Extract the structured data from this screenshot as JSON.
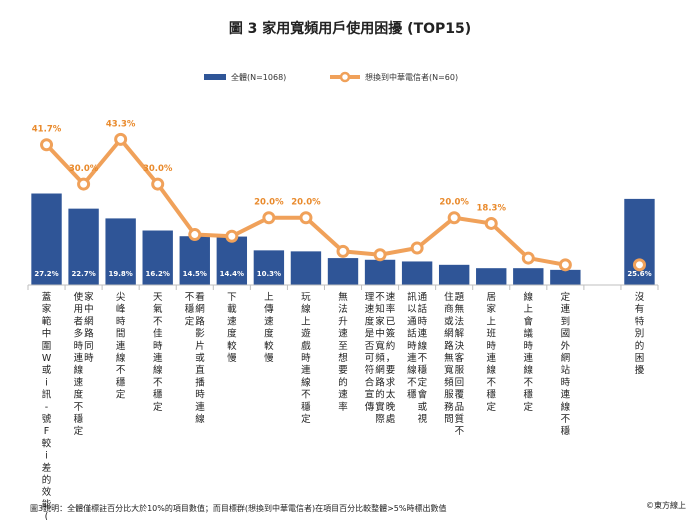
{
  "chart_data": {
    "type": "bar",
    "title": "圖 3 家用寬頻用戶使用困擾 (TOP15)",
    "categories": [
      "蓋範圍或訊號較差家中Wi-Fi的效能(涵",
      "使用者多時連線速度不穩定家中網路同時",
      "尖峰時間連線不穩定",
      "天氣不佳時連線不穩定",
      "不穩定看網路影片或直播時連線",
      "下載速度較慢",
      "上傳速度較慢",
      "玩線上遊戲時連線不穩定",
      "無法升速至想要的速率",
      "理速度是否可符合宣傳不知家中寬頻網路的實際速率已簽約，要求太晚處理已經無法",
      "訊以通話時連線不穩定（影像或視訊通話時連線不穩定）",
      "住商或網路無寬頻服務問題無法解決客服回覆品質不佳",
      "居家上班時連線不穩定",
      "線上會議時連線不穩定",
      "定連到國外網站時連線不穩",
      "",
      "沒有特別的困擾"
    ],
    "category_columns": [
      [
        "蓋家範中圍W或i訊-號F較i差的效能(涵"
      ],
      [
        "使用者多時連線速度不穩定",
        "家中網路同時"
      ],
      [
        "尖峰時間連線不穩定"
      ],
      [
        "天氣不佳時連線不穩定"
      ],
      [
        "不穩定",
        "看網路影片或直播時連線"
      ],
      [
        "下載速度較慢"
      ],
      [
        "上傳速度較慢"
      ],
      [
        "玩線上遊戲時連線不穩定"
      ],
      [
        "無法升速至想要的速率"
      ],
      [
        "理速度是否可符合宣傳",
        "不知家中寬頻網路的實際",
        "速率已簽約，要求太晚處"
      ],
      [
        "訊以通話時連線不穩",
        "通話時連線不穩定會或視"
      ],
      [
        "住商或網路無寬頻服務問",
        "題無法解決客服回覆品質不"
      ],
      [
        "居家上班時連線不穩定"
      ],
      [
        "線上會議時連線不穩定"
      ],
      [
        "定連到國外網站時連線不穩"
      ],
      [
        ""
      ],
      [
        "沒有特別的困擾"
      ]
    ],
    "series": [
      {
        "name": "全體(N=1068)",
        "type": "bar",
        "values": [
          27.2,
          22.7,
          19.8,
          16.2,
          14.5,
          14.4,
          10.3,
          10.0,
          8.0,
          7.5,
          7.0,
          6.0,
          5.0,
          5.0,
          4.5,
          0,
          25.6
        ],
        "labels": [
          "27.2%",
          "22.7%",
          "19.8%",
          "16.2%",
          "14.5%",
          "14.4%",
          "10.3%",
          "",
          "",
          "",
          "",
          "",
          "",
          "",
          "",
          "",
          "25.6%"
        ]
      },
      {
        "name": "想換到中華電信者(N=60)",
        "type": "line",
        "values": [
          41.7,
          30.0,
          43.3,
          30.0,
          15.0,
          14.5,
          20.0,
          20.0,
          10.0,
          9.0,
          11.0,
          20.0,
          18.3,
          8.0,
          6.0,
          null,
          6.0
        ],
        "labels": [
          "41.7%",
          "30.0%",
          "43.3%",
          "30.0%",
          "",
          "",
          "20.0%",
          "20.0%",
          "",
          "",
          "",
          "20.0%",
          "18.3%",
          "",
          "",
          "",
          ""
        ]
      }
    ],
    "ylim": [
      0,
      55
    ],
    "colors": {
      "bar": "#2f5597",
      "line": "#f0a15a",
      "marker_fill": "#ffffff",
      "label": "#e98a2c"
    }
  },
  "footnote": "圖3說明：全體僅標註百分比大於10%的項目數值；而目標群(想換到中華電信者)在項目百分比較整體>5%時標出數值",
  "source": "©東方線上"
}
